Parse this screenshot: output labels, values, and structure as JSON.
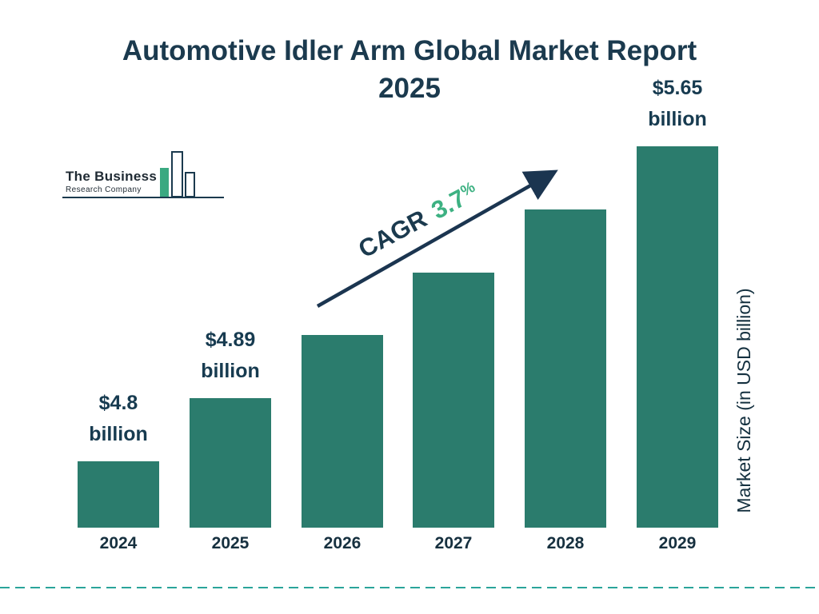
{
  "report": {
    "title_line1": "Automotive Idler Arm Global Market Report",
    "title_line2": "2025"
  },
  "logo": {
    "name_line1": "The Business",
    "name_line2": "Research Company"
  },
  "annotation": {
    "cagr_label": "CAGR",
    "cagr_value": "3.7",
    "cagr_percent_sign": "%"
  },
  "axis": {
    "y_label": "Market Size (in USD billion)"
  },
  "colors": {
    "bar": "#2b7c6d",
    "title_text": "#1b3a4e",
    "accent_green": "#3db182",
    "arrow": "#1b3550",
    "dashed_line": "#2aa49a"
  },
  "chart_data": {
    "type": "bar",
    "title": "Automotive Idler Arm Global Market Report 2025",
    "categories": [
      "2024",
      "2025",
      "2026",
      "2027",
      "2028",
      "2029"
    ],
    "values": [
      4.8,
      4.89,
      5.07,
      5.26,
      5.45,
      5.65
    ],
    "unit": "USD billion",
    "ylabel": "Market Size (in USD billion)",
    "cagr": "3.7%",
    "value_labels": [
      {
        "category": "2024",
        "lines": [
          "$4.8",
          "billion"
        ]
      },
      {
        "category": "2025",
        "lines": [
          "$4.89",
          "billion"
        ]
      },
      {
        "category": "2029",
        "lines": [
          "$5.65",
          "billion"
        ]
      }
    ],
    "legend": false,
    "grid": false
  }
}
